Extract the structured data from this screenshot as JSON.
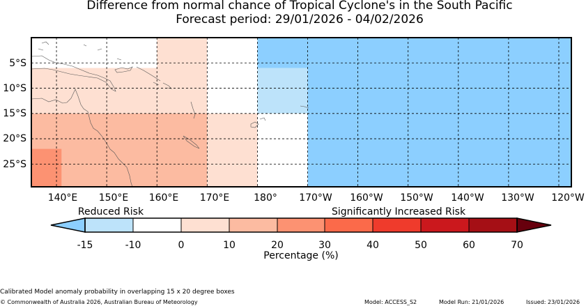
{
  "title": {
    "line1": "Difference from normal chance of Tropical Cyclone's in the South Pacific",
    "line2": "Forecast period: 29/01/2026 - 04/02/2026"
  },
  "map": {
    "lon_ticks": [
      "140°E",
      "150°E",
      "160°E",
      "170°E",
      "180°",
      "170°W",
      "160°W",
      "150°W",
      "140°W",
      "130°W",
      "120°W"
    ],
    "lat_ticks": [
      "5°S",
      "10°S",
      "15°S",
      "20°S",
      "25°S"
    ],
    "regions": [
      {
        "lon": [
          135,
          160
        ],
        "lat": [
          0,
          6
        ],
        "category": "neutral"
      },
      {
        "lon": [
          160,
          170
        ],
        "lat": [
          0,
          15
        ],
        "category": "r0_10"
      },
      {
        "lon": [
          170,
          180
        ],
        "lat": [
          0,
          15
        ],
        "category": "neutral"
      },
      {
        "lon": [
          180,
          190
        ],
        "lat": [
          0,
          6
        ],
        "category": "neg_high"
      },
      {
        "lon": [
          180,
          190
        ],
        "lat": [
          6,
          15
        ],
        "category": "neg_low"
      },
      {
        "lon": [
          190,
          243
        ],
        "lat": [
          0,
          15
        ],
        "category": "neg_high"
      },
      {
        "lon": [
          135,
          160
        ],
        "lat": [
          6,
          15
        ],
        "category": "r0_10"
      },
      {
        "lon": [
          135,
          170
        ],
        "lat": [
          15,
          30
        ],
        "category": "r10_20"
      },
      {
        "lon": [
          170,
          180
        ],
        "lat": [
          15,
          30
        ],
        "category": "r0_10"
      },
      {
        "lon": [
          180,
          190
        ],
        "lat": [
          15,
          30
        ],
        "category": "neutral"
      },
      {
        "lon": [
          190,
          243
        ],
        "lat": [
          15,
          30
        ],
        "category": "neg_high"
      },
      {
        "lon": [
          135,
          141
        ],
        "lat": [
          22,
          30
        ],
        "category": "r20_30"
      }
    ]
  },
  "colorbar": {
    "label_left": "Reduced Risk",
    "label_right": "Significantly Increased Risk",
    "ticks": [
      "-15",
      "-10",
      "0",
      "10",
      "20",
      "30",
      "40",
      "50",
      "60",
      "70"
    ],
    "xlabel": "Percentage (%)",
    "colors": {
      "low_extend": "#8ccfff",
      "neg_high": "#8ccfff",
      "neg_low": "#bde3fa",
      "neutral": "#ffffff",
      "r0_10": "#fee0d2",
      "r10_20": "#fcbba1",
      "r20_30": "#fc9272",
      "r30_40": "#fb6a4a",
      "r40_50": "#ef3b2c",
      "r50_60": "#cb181d",
      "r60_70": "#a50f15",
      "high_extend": "#67000d"
    }
  },
  "footer": {
    "note": "Calibrated Model anomaly probability in overlapping 15 x 20 degree boxes",
    "copyright": "© Commonwealth of Australia 2026, Australian Bureau of Meteorology",
    "model": "Model: ACCESS_S2",
    "model_run": "Model Run: 21/01/2026",
    "issued": "Issued: 23/01/2026"
  }
}
